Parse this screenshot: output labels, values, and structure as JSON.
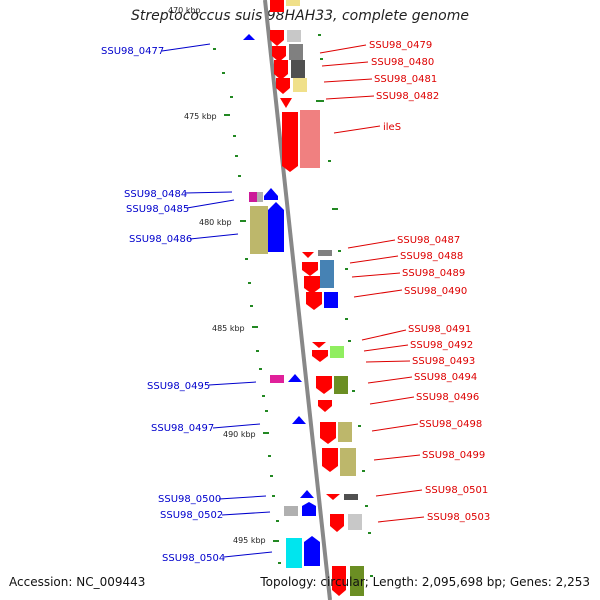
{
  "title": "Streptococcus suis 98HAH33, complete genome",
  "footer": {
    "accession": "Accession: NC_009443",
    "summary": "Topology: circular; Length: 2,095,698 bp; Genes: 2,253"
  },
  "colors": {
    "forward_strand_label": "#0000cc",
    "reverse_strand_label": "#dd0000",
    "forward_arrow": "#0000ff",
    "reverse_arrow": "#ff0000",
    "backbone": "#888888",
    "gc_marks": "#228822"
  },
  "kbp_ticks": [
    "470 kbp",
    "475 kbp",
    "480 kbp",
    "485 kbp",
    "490 kbp",
    "495 kbp"
  ],
  "genes_left": [
    {
      "label": "SSU98_0477"
    },
    {
      "label": "SSU98_0484"
    },
    {
      "label": "SSU98_0485"
    },
    {
      "label": "SSU98_0486"
    },
    {
      "label": "SSU98_0495"
    },
    {
      "label": "SSU98_0497"
    },
    {
      "label": "SSU98_0500"
    },
    {
      "label": "SSU98_0502"
    },
    {
      "label": "SSU98_0504"
    }
  ],
  "genes_right": [
    {
      "label": "SSU98_0479"
    },
    {
      "label": "SSU98_0480"
    },
    {
      "label": "SSU98_0481"
    },
    {
      "label": "SSU98_0482"
    },
    {
      "label": "ileS"
    },
    {
      "label": "SSU98_0487"
    },
    {
      "label": "SSU98_0488"
    },
    {
      "label": "SSU98_0489"
    },
    {
      "label": "SSU98_0490"
    },
    {
      "label": "SSU98_0491"
    },
    {
      "label": "SSU98_0492"
    },
    {
      "label": "SSU98_0493"
    },
    {
      "label": "SSU98_0494"
    },
    {
      "label": "SSU98_0496"
    },
    {
      "label": "SSU98_0498"
    },
    {
      "label": "SSU98_0499"
    },
    {
      "label": "SSU98_0501"
    },
    {
      "label": "SSU98_0503"
    }
  ]
}
